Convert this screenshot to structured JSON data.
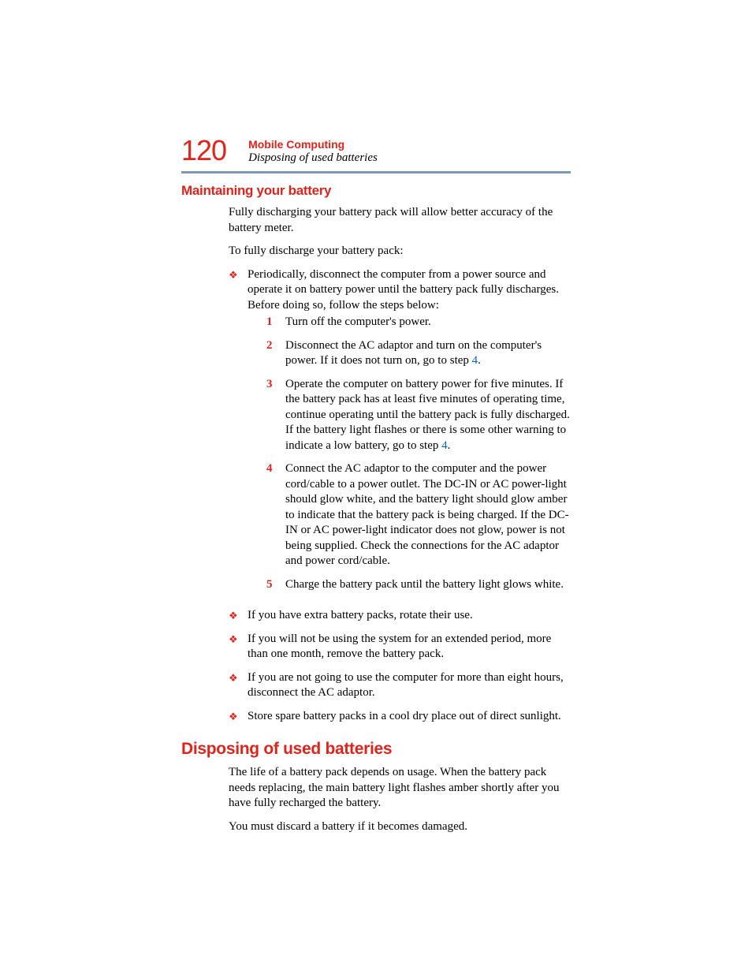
{
  "colors": {
    "accent_red": "#e2231a",
    "divider_blue": "#7a99b8",
    "link_blue": "#0066cc",
    "body_text": "#000000",
    "background": "#ffffff"
  },
  "typography": {
    "body_font": "Times New Roman",
    "heading_font": "Arial Narrow",
    "body_size_pt": 11,
    "h1_size_pt": 16,
    "h2_size_pt": 13,
    "page_number_size_pt": 27
  },
  "header": {
    "page_number": "120",
    "chapter_title": "Mobile Computing",
    "section_subtitle": "Disposing of used batteries"
  },
  "section1": {
    "heading": "Maintaining your battery",
    "para1": "Fully discharging your battery pack will allow better accuracy of the battery meter.",
    "para2": "To fully discharge your battery pack:",
    "bullets": [
      {
        "text": "Periodically, disconnect the computer from a power source and operate it on battery power until the battery pack fully discharges. Before doing so, follow the steps below:",
        "steps": [
          {
            "n": "1",
            "text": "Turn off the computer's power."
          },
          {
            "n": "2",
            "text_before": "Disconnect the AC adaptor and turn on the computer's power. If it does not turn on, go to step ",
            "link": "4",
            "text_after": "."
          },
          {
            "n": "3",
            "text_before": "Operate the computer on battery power for five minutes. If the battery pack has at least five minutes of operating time, continue operating until the battery pack is fully discharged. If the battery light flashes or there is some other warning to indicate a low battery, go to step ",
            "link": "4",
            "text_after": "."
          },
          {
            "n": "4",
            "text": "Connect the AC adaptor to the computer and the power cord/cable to a power outlet. The DC-IN or AC power-light should glow white, and the battery light should glow amber to indicate that the battery pack is being charged. If the DC-IN or AC power-light indicator does not glow, power is not being supplied. Check the connections for the AC adaptor and power cord/cable."
          },
          {
            "n": "5",
            "text": "Charge the battery pack until the battery light glows white."
          }
        ]
      },
      {
        "text": "If you have extra battery packs, rotate their use."
      },
      {
        "text": "If you will not be using the system for an extended period, more than one month, remove the battery pack."
      },
      {
        "text": "If you are not going to use the computer for more than eight hours, disconnect the AC adaptor."
      },
      {
        "text": "Store spare battery packs in a cool dry place out of direct sunlight."
      }
    ]
  },
  "section2": {
    "heading": "Disposing of used batteries",
    "para1": "The life of a battery pack depends on usage. When the battery pack needs replacing, the main battery light flashes amber shortly after you have fully recharged the battery.",
    "para2": "You must discard a battery if it becomes damaged."
  },
  "bullet_glyph": "❖"
}
